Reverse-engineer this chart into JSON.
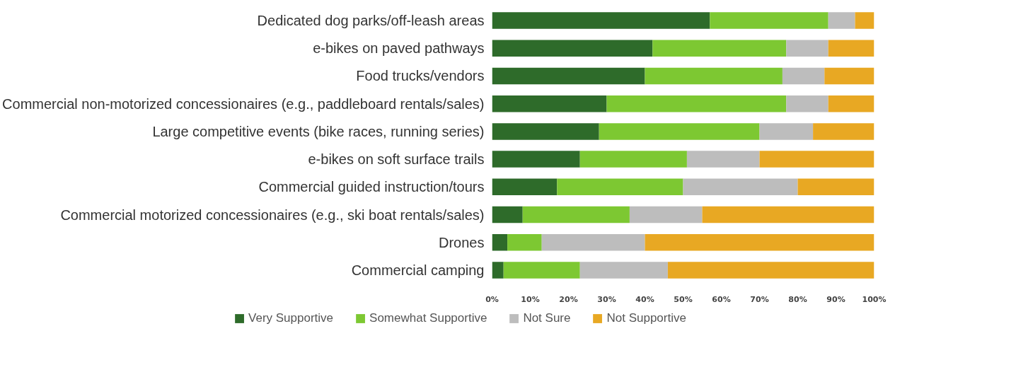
{
  "chart_data": {
    "type": "bar",
    "orientation": "horizontal",
    "stacked": true,
    "categories": [
      "Dedicated dog parks/off-leash areas",
      "e-bikes on paved pathways",
      "Food trucks/vendors",
      "Commercial non-motorized concessionaires (e.g., paddleboard rentals/sales)",
      "Large competitive events (bike races, running series)",
      "e-bikes on soft surface trails",
      "Commercial guided instruction/tours",
      "Commercial motorized concessionaires (e.g., ski boat rentals/sales)",
      "Drones",
      "Commercial camping"
    ],
    "series": [
      {
        "name": "Very Supportive",
        "color": "#2e6b2a",
        "values": [
          57,
          42,
          40,
          30,
          28,
          23,
          17,
          8,
          4,
          3
        ]
      },
      {
        "name": "Somewhat Supportive",
        "color": "#7dc832",
        "values": [
          31,
          35,
          36,
          47,
          42,
          28,
          33,
          28,
          9,
          20
        ]
      },
      {
        "name": "Not Sure",
        "color": "#bdbdbd",
        "values": [
          7,
          11,
          11,
          11,
          14,
          19,
          30,
          19,
          27,
          23
        ]
      },
      {
        "name": "Not Supportive",
        "color": "#e8a823",
        "values": [
          5,
          12,
          13,
          12,
          16,
          30,
          20,
          45,
          60,
          54
        ]
      }
    ],
    "xlim": [
      0,
      100
    ],
    "xticks": [
      {
        "value": 0,
        "label": "0%"
      },
      {
        "value": 10,
        "label": "10%"
      },
      {
        "value": 20,
        "label": "20%"
      },
      {
        "value": 30,
        "label": "30%"
      },
      {
        "value": 40,
        "label": "40%"
      },
      {
        "value": 50,
        "label": "50%"
      },
      {
        "value": 60,
        "label": "60%"
      },
      {
        "value": 70,
        "label": "70%"
      },
      {
        "value": 80,
        "label": "80%"
      },
      {
        "value": 90,
        "label": "90%"
      },
      {
        "value": 100,
        "label": "100%"
      }
    ],
    "grid": false,
    "legend": "bottom"
  }
}
